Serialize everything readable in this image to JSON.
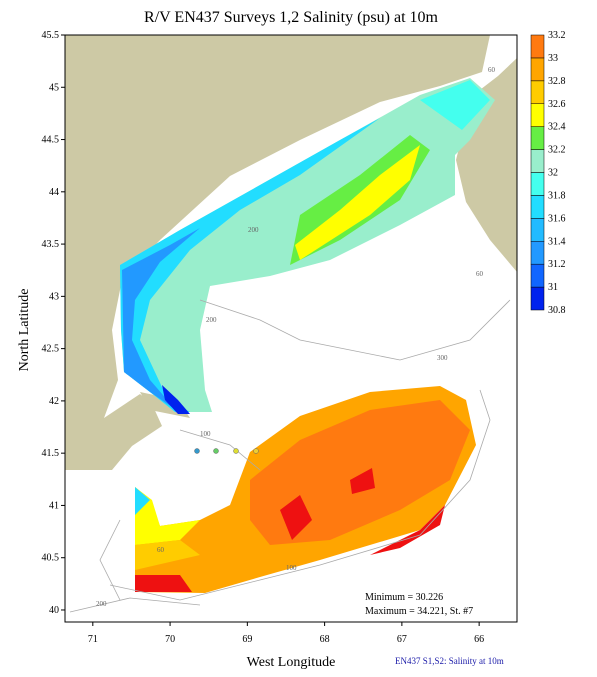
{
  "chart_data": {
    "type": "contour-map",
    "title": "R/V EN437 Surveys 1,2 Salinity (psu) at 10m",
    "xlabel": "West Longitude",
    "ylabel": "North Latitude",
    "xlim": [
      71.36,
      65.51
    ],
    "ylim": [
      39.885,
      45.5
    ],
    "xticks": [
      71,
      70,
      69,
      68,
      67,
      66
    ],
    "yticks": [
      40,
      40.5,
      41,
      41.5,
      42,
      42.5,
      43,
      43.5,
      44,
      44.5,
      45,
      45.5
    ],
    "colorbar": {
      "ticks": [
        30.8,
        31,
        31.2,
        31.4,
        31.6,
        31.8,
        32,
        32.2,
        32.4,
        32.6,
        32.8,
        33,
        33.2
      ],
      "colors": [
        "#0022ee",
        "#1166ff",
        "#2299ff",
        "#22bbff",
        "#22ddff",
        "#44ffee",
        "#99eecc",
        "#66ee44",
        "#ffff00",
        "#ffcc00",
        "#ffa500",
        "#ff7a10"
      ],
      "top_color": "#ee1111"
    },
    "contour_labels": [
      "60",
      "200",
      "60",
      "200",
      "300",
      "100",
      "100",
      "60",
      "200"
    ],
    "annotations": [
      "Minimum = 30.226",
      "Maximum = 34.221, St. #7"
    ],
    "footer": "EN437 S1,S2: Salinity at 10m"
  }
}
